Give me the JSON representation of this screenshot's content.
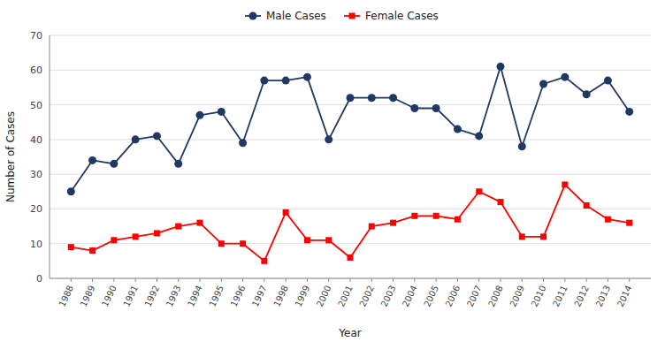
{
  "chart_data": {
    "type": "line",
    "x": [
      1988,
      1989,
      1990,
      1991,
      1992,
      1993,
      1994,
      1995,
      1996,
      1997,
      1998,
      1999,
      2000,
      2001,
      2002,
      2003,
      2004,
      2005,
      2006,
      2007,
      2008,
      2009,
      2010,
      2011,
      2012,
      2013,
      2014
    ],
    "series": [
      {
        "name": "Male Cases",
        "color": "#1F3864",
        "marker": "circle",
        "values": [
          25,
          34,
          33,
          40,
          41,
          33,
          47,
          48,
          39,
          57,
          57,
          58,
          40,
          52,
          52,
          52,
          49,
          49,
          43,
          41,
          61,
          38,
          56,
          58,
          53,
          57,
          48
        ]
      },
      {
        "name": "Female Cases",
        "color": "#FF0000",
        "marker": "square",
        "values": [
          9,
          8,
          11,
          12,
          13,
          15,
          16,
          10,
          10,
          5,
          19,
          11,
          11,
          6,
          15,
          16,
          18,
          18,
          17,
          25,
          22,
          12,
          12,
          27,
          21,
          17,
          16
        ]
      }
    ],
    "xlabel": "Year",
    "ylabel": "Number of Cases",
    "xlim": [
      1987,
      2015
    ],
    "xticks": [
      1988,
      1989,
      1990,
      1991,
      1992,
      1993,
      1994,
      1995,
      1996,
      1997,
      1998,
      1999,
      2000,
      2001,
      2002,
      2003,
      2004,
      2005,
      2006,
      2007,
      2008,
      2009,
      2010,
      2011,
      2012,
      2013,
      2014
    ],
    "ylim": [
      0,
      70
    ],
    "yticks": [
      0,
      10,
      20,
      30,
      40,
      50,
      60,
      70
    ],
    "grid": true,
    "legend": "top"
  }
}
